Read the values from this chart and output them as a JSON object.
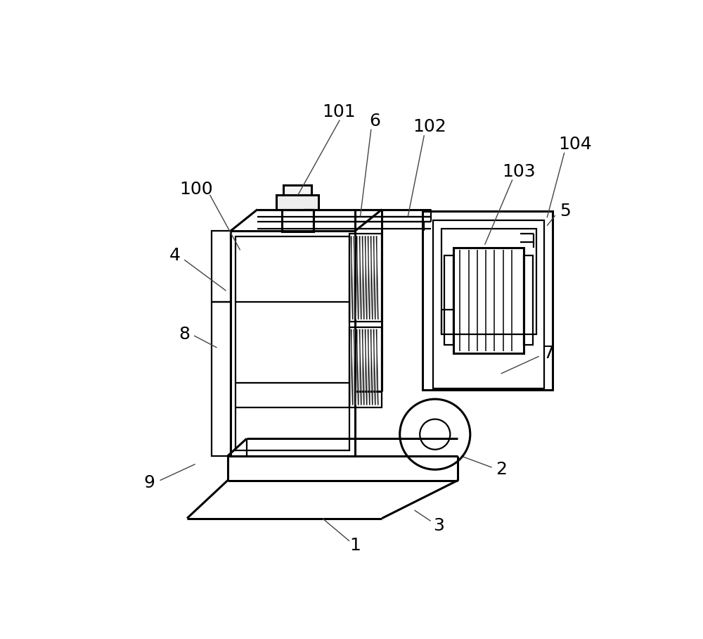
{
  "bg_color": "#ffffff",
  "lc": "#000000",
  "fs": 18,
  "lw_heavy": 2.2,
  "lw_med": 1.6,
  "lw_thin": 1.1,
  "lw_leader": 1.0
}
